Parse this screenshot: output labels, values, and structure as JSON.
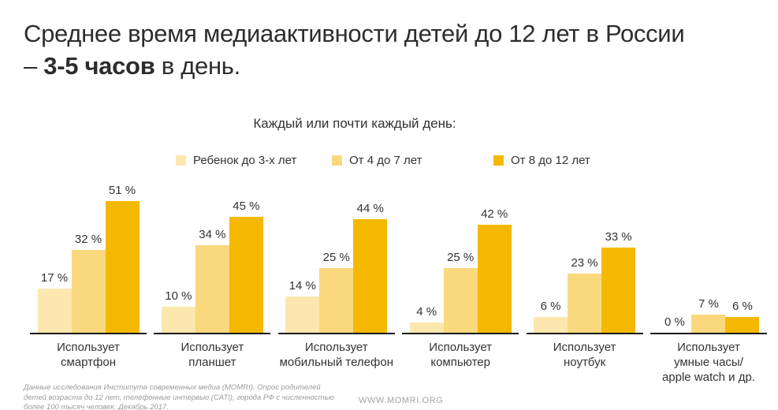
{
  "title": {
    "line1": "Среднее время медиаактивности детей до 12 лет в России",
    "line2_prefix": "– ",
    "line2_bold": "3-5 часов",
    "line2_suffix": " в день."
  },
  "chart_data": {
    "type": "bar",
    "title": "Каждый или почти каждый день:",
    "categories": [
      "Использует смартфон",
      "Использует планшет",
      "Использует мобильный телефон",
      "Использует компьютер",
      "Использует ноутбук",
      "Использует умные часы/ apple watch и др."
    ],
    "category_lines": [
      [
        "Использует",
        "смартфон"
      ],
      [
        "Использует",
        "планшет"
      ],
      [
        "Использует",
        "мобильный телефон"
      ],
      [
        "Использует",
        "компьютер"
      ],
      [
        "Использует",
        "ноутбук"
      ],
      [
        "Использует",
        "умные часы/",
        "apple watch и др."
      ]
    ],
    "series": [
      {
        "name": "Ребенок до 3-х лет",
        "color": "#FCE7AE",
        "values": [
          17,
          10,
          14,
          4,
          6,
          0
        ]
      },
      {
        "name": "От 4 до 7 лет",
        "color": "#FAD87D",
        "values": [
          32,
          34,
          25,
          25,
          23,
          7
        ]
      },
      {
        "name": "От 8 до 12 лет",
        "color": "#F5B800",
        "values": [
          51,
          45,
          44,
          42,
          33,
          6
        ]
      }
    ],
    "value_suffix": " %",
    "ylim": [
      0,
      55
    ],
    "legend_position": "top",
    "grid": false,
    "axis_color": "#1a1a1a",
    "text_color": "#333333"
  },
  "footer": {
    "source_note": "Данные исследования Института современных медиа (MOMRI). Опрос родителей детей возраста до 12 лет, телефонные интервью (CATI), города РФ с численностью более 100 тысяч человек. Декабрь 2017.",
    "website": "WWW.MOMRI.ORG"
  }
}
